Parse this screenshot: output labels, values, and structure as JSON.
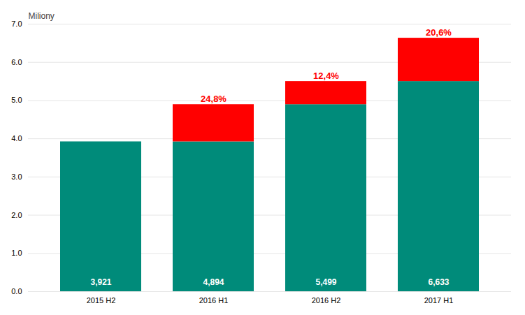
{
  "chart_data": {
    "type": "bar",
    "stacked": true,
    "categories": [
      "2015 H2",
      "2016 H1",
      "2016 H2",
      "2017 H1"
    ],
    "series": [
      {
        "color": "#008B7A",
        "values": [
          3.921,
          3.921,
          4.894,
          5.499
        ]
      },
      {
        "color": "#ff0000",
        "values": [
          0.0,
          0.973,
          0.605,
          1.134
        ]
      }
    ],
    "totals": [
      3.921,
      4.894,
      5.499,
      6.633
    ],
    "total_labels": [
      "3,921",
      "4,894",
      "5,499",
      "6,633"
    ],
    "pct_labels": [
      null,
      "24,8%",
      "12,4%",
      "20,6%"
    ],
    "ylabel": "Miliony",
    "ylim": [
      0,
      7
    ],
    "yticks": [
      0,
      1,
      2,
      3,
      4,
      5,
      6,
      7
    ],
    "grid": true
  }
}
